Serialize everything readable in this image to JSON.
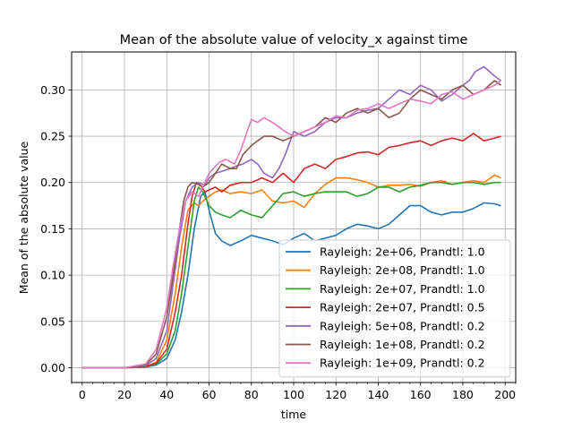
{
  "chart_data": {
    "type": "line",
    "title": "Mean of the absolute value of velocity_x against time",
    "xlabel": "time",
    "ylabel": "Mean of the absolute value",
    "xlim": [
      -5,
      205
    ],
    "ylim": [
      -0.016,
      0.341
    ],
    "x_major_ticks": [
      0,
      20,
      40,
      60,
      80,
      100,
      120,
      140,
      160,
      180,
      200
    ],
    "x_minor_step": 5,
    "y_major_ticks": [
      0.0,
      0.05,
      0.1,
      0.15,
      0.2,
      0.25,
      0.3
    ],
    "x_tick_labels": [
      "0",
      "20",
      "40",
      "60",
      "80",
      "100",
      "120",
      "140",
      "160",
      "180",
      "200"
    ],
    "y_tick_labels": [
      "0.00",
      "0.05",
      "0.10",
      "0.15",
      "0.20",
      "0.25",
      "0.30"
    ],
    "grid": true,
    "legend_position": "lower-right",
    "series": [
      {
        "name": "Rayleigh: 2e+06, Prandtl: 1.0",
        "color": "#1f77b4",
        "x": [
          0,
          20,
          30,
          35,
          40,
          44,
          47,
          50,
          53,
          56,
          58,
          60,
          63,
          66,
          70,
          75,
          80,
          85,
          90,
          95,
          100,
          105,
          110,
          115,
          120,
          125,
          130,
          135,
          140,
          145,
          150,
          155,
          160,
          165,
          170,
          175,
          180,
          185,
          190,
          195,
          198
        ],
        "y": [
          0,
          0,
          0.0005,
          0.003,
          0.01,
          0.03,
          0.06,
          0.1,
          0.15,
          0.185,
          0.19,
          0.17,
          0.145,
          0.137,
          0.132,
          0.137,
          0.143,
          0.14,
          0.137,
          0.133,
          0.14,
          0.145,
          0.137,
          0.14,
          0.143,
          0.15,
          0.155,
          0.153,
          0.15,
          0.155,
          0.165,
          0.175,
          0.175,
          0.168,
          0.165,
          0.168,
          0.168,
          0.172,
          0.178,
          0.177,
          0.175
        ]
      },
      {
        "name": "Rayleigh: 2e+08, Prandtl: 1.0",
        "color": "#ff7f0e",
        "x": [
          0,
          20,
          30,
          35,
          40,
          44,
          47,
          50,
          53,
          55,
          58,
          60,
          63,
          66,
          70,
          75,
          80,
          85,
          90,
          95,
          100,
          105,
          110,
          115,
          120,
          125,
          130,
          135,
          140,
          145,
          150,
          155,
          160,
          165,
          170,
          175,
          180,
          185,
          190,
          195,
          198
        ],
        "y": [
          0,
          0,
          0.001,
          0.006,
          0.03,
          0.08,
          0.13,
          0.17,
          0.178,
          0.175,
          0.182,
          0.185,
          0.19,
          0.192,
          0.188,
          0.19,
          0.188,
          0.192,
          0.18,
          0.178,
          0.18,
          0.173,
          0.188,
          0.198,
          0.205,
          0.205,
          0.203,
          0.2,
          0.195,
          0.197,
          0.197,
          0.198,
          0.196,
          0.2,
          0.202,
          0.198,
          0.2,
          0.202,
          0.2,
          0.208,
          0.205
        ]
      },
      {
        "name": "Rayleigh: 2e+07, Prandtl: 1.0",
        "color": "#2ca02c",
        "x": [
          0,
          20,
          30,
          35,
          40,
          44,
          47,
          50,
          53,
          55,
          57,
          60,
          63,
          66,
          70,
          75,
          80,
          85,
          90,
          95,
          100,
          105,
          110,
          115,
          120,
          125,
          130,
          135,
          140,
          145,
          150,
          155,
          160,
          165,
          170,
          175,
          180,
          185,
          190,
          195,
          198
        ],
        "y": [
          0,
          0,
          0.0008,
          0.004,
          0.015,
          0.04,
          0.08,
          0.13,
          0.18,
          0.195,
          0.19,
          0.175,
          0.168,
          0.165,
          0.162,
          0.17,
          0.165,
          0.162,
          0.175,
          0.188,
          0.19,
          0.185,
          0.188,
          0.19,
          0.19,
          0.19,
          0.185,
          0.188,
          0.195,
          0.195,
          0.19,
          0.195,
          0.197,
          0.2,
          0.2,
          0.198,
          0.2,
          0.2,
          0.198,
          0.2,
          0.2
        ]
      },
      {
        "name": "Rayleigh: 2e+07, Prandtl: 0.5",
        "color": "#d62728",
        "x": [
          0,
          20,
          30,
          35,
          40,
          44,
          47,
          50,
          52,
          54,
          56,
          58,
          60,
          63,
          66,
          70,
          75,
          80,
          85,
          90,
          95,
          100,
          105,
          110,
          115,
          120,
          125,
          130,
          135,
          140,
          145,
          150,
          155,
          160,
          165,
          170,
          175,
          180,
          185,
          190,
          195,
          198
        ],
        "y": [
          0,
          0,
          0.001,
          0.005,
          0.02,
          0.06,
          0.1,
          0.155,
          0.185,
          0.2,
          0.197,
          0.19,
          0.192,
          0.195,
          0.19,
          0.197,
          0.2,
          0.2,
          0.205,
          0.2,
          0.21,
          0.2,
          0.215,
          0.22,
          0.215,
          0.225,
          0.228,
          0.232,
          0.233,
          0.23,
          0.238,
          0.24,
          0.243,
          0.245,
          0.24,
          0.245,
          0.248,
          0.245,
          0.253,
          0.245,
          0.248,
          0.25
        ]
      },
      {
        "name": "Rayleigh: 5e+08, Prandtl: 0.2",
        "color": "#9467bd",
        "x": [
          0,
          20,
          30,
          35,
          40,
          43,
          46,
          49,
          52,
          55,
          58,
          60,
          63,
          66,
          70,
          73,
          76,
          80,
          83,
          86,
          90,
          93,
          96,
          100,
          105,
          110,
          115,
          120,
          125,
          130,
          135,
          140,
          145,
          150,
          155,
          160,
          165,
          170,
          175,
          180,
          183,
          186,
          190,
          195,
          198
        ],
        "y": [
          0,
          0,
          0.002,
          0.01,
          0.04,
          0.09,
          0.14,
          0.18,
          0.195,
          0.2,
          0.197,
          0.205,
          0.21,
          0.212,
          0.215,
          0.218,
          0.22,
          0.225,
          0.22,
          0.21,
          0.205,
          0.215,
          0.23,
          0.255,
          0.25,
          0.255,
          0.265,
          0.27,
          0.27,
          0.275,
          0.278,
          0.28,
          0.29,
          0.3,
          0.295,
          0.305,
          0.3,
          0.288,
          0.295,
          0.305,
          0.31,
          0.32,
          0.325,
          0.315,
          0.31
        ]
      },
      {
        "name": "Rayleigh: 1e+08, Prandtl: 0.2",
        "color": "#8c564b",
        "x": [
          0,
          20,
          30,
          35,
          40,
          43,
          46,
          48,
          50,
          52,
          55,
          57,
          60,
          63,
          66,
          70,
          73,
          76,
          80,
          83,
          86,
          90,
          95,
          100,
          105,
          110,
          115,
          120,
          125,
          130,
          135,
          140,
          145,
          150,
          155,
          160,
          165,
          170,
          175,
          180,
          185,
          190,
          195,
          198
        ],
        "y": [
          0,
          0,
          0.003,
          0.015,
          0.055,
          0.1,
          0.15,
          0.18,
          0.195,
          0.2,
          0.198,
          0.195,
          0.2,
          0.21,
          0.22,
          0.215,
          0.215,
          0.23,
          0.24,
          0.245,
          0.25,
          0.25,
          0.245,
          0.25,
          0.255,
          0.26,
          0.27,
          0.265,
          0.275,
          0.28,
          0.275,
          0.28,
          0.27,
          0.275,
          0.29,
          0.3,
          0.295,
          0.29,
          0.3,
          0.305,
          0.295,
          0.3,
          0.31,
          0.305
        ]
      },
      {
        "name": "Rayleigh: 1e+09, Prandtl: 0.2",
        "color": "#e377c2",
        "x": [
          0,
          20,
          30,
          35,
          40,
          43,
          46,
          49,
          52,
          55,
          58,
          60,
          62,
          65,
          68,
          72,
          75,
          78,
          80,
          83,
          86,
          90,
          93,
          96,
          100,
          105,
          110,
          115,
          120,
          125,
          130,
          135,
          140,
          145,
          150,
          155,
          160,
          165,
          170,
          175,
          180,
          185,
          190,
          195,
          198
        ],
        "y": [
          0,
          0,
          0.004,
          0.02,
          0.065,
          0.11,
          0.15,
          0.18,
          0.19,
          0.185,
          0.2,
          0.21,
          0.215,
          0.222,
          0.225,
          0.22,
          0.235,
          0.255,
          0.268,
          0.265,
          0.27,
          0.265,
          0.26,
          0.255,
          0.25,
          0.255,
          0.26,
          0.265,
          0.272,
          0.27,
          0.278,
          0.28,
          0.285,
          0.28,
          0.285,
          0.29,
          0.288,
          0.285,
          0.295,
          0.298,
          0.29,
          0.295,
          0.3,
          0.305,
          0.31
        ]
      }
    ]
  }
}
